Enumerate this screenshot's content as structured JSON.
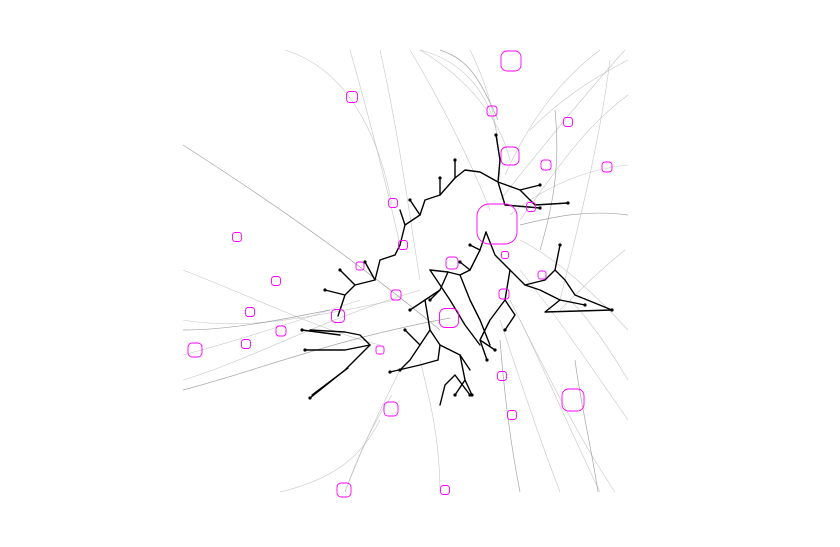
{
  "colors": {
    "background": "#ffffff",
    "node_stroke": "#ff00ff",
    "edge_stroke": "#b3b3b3",
    "path_stroke": "#000000"
  },
  "figure": {
    "type": "network-bundle-diagram",
    "node_shape": "rounded-square",
    "node_count": 40,
    "labels": []
  }
}
